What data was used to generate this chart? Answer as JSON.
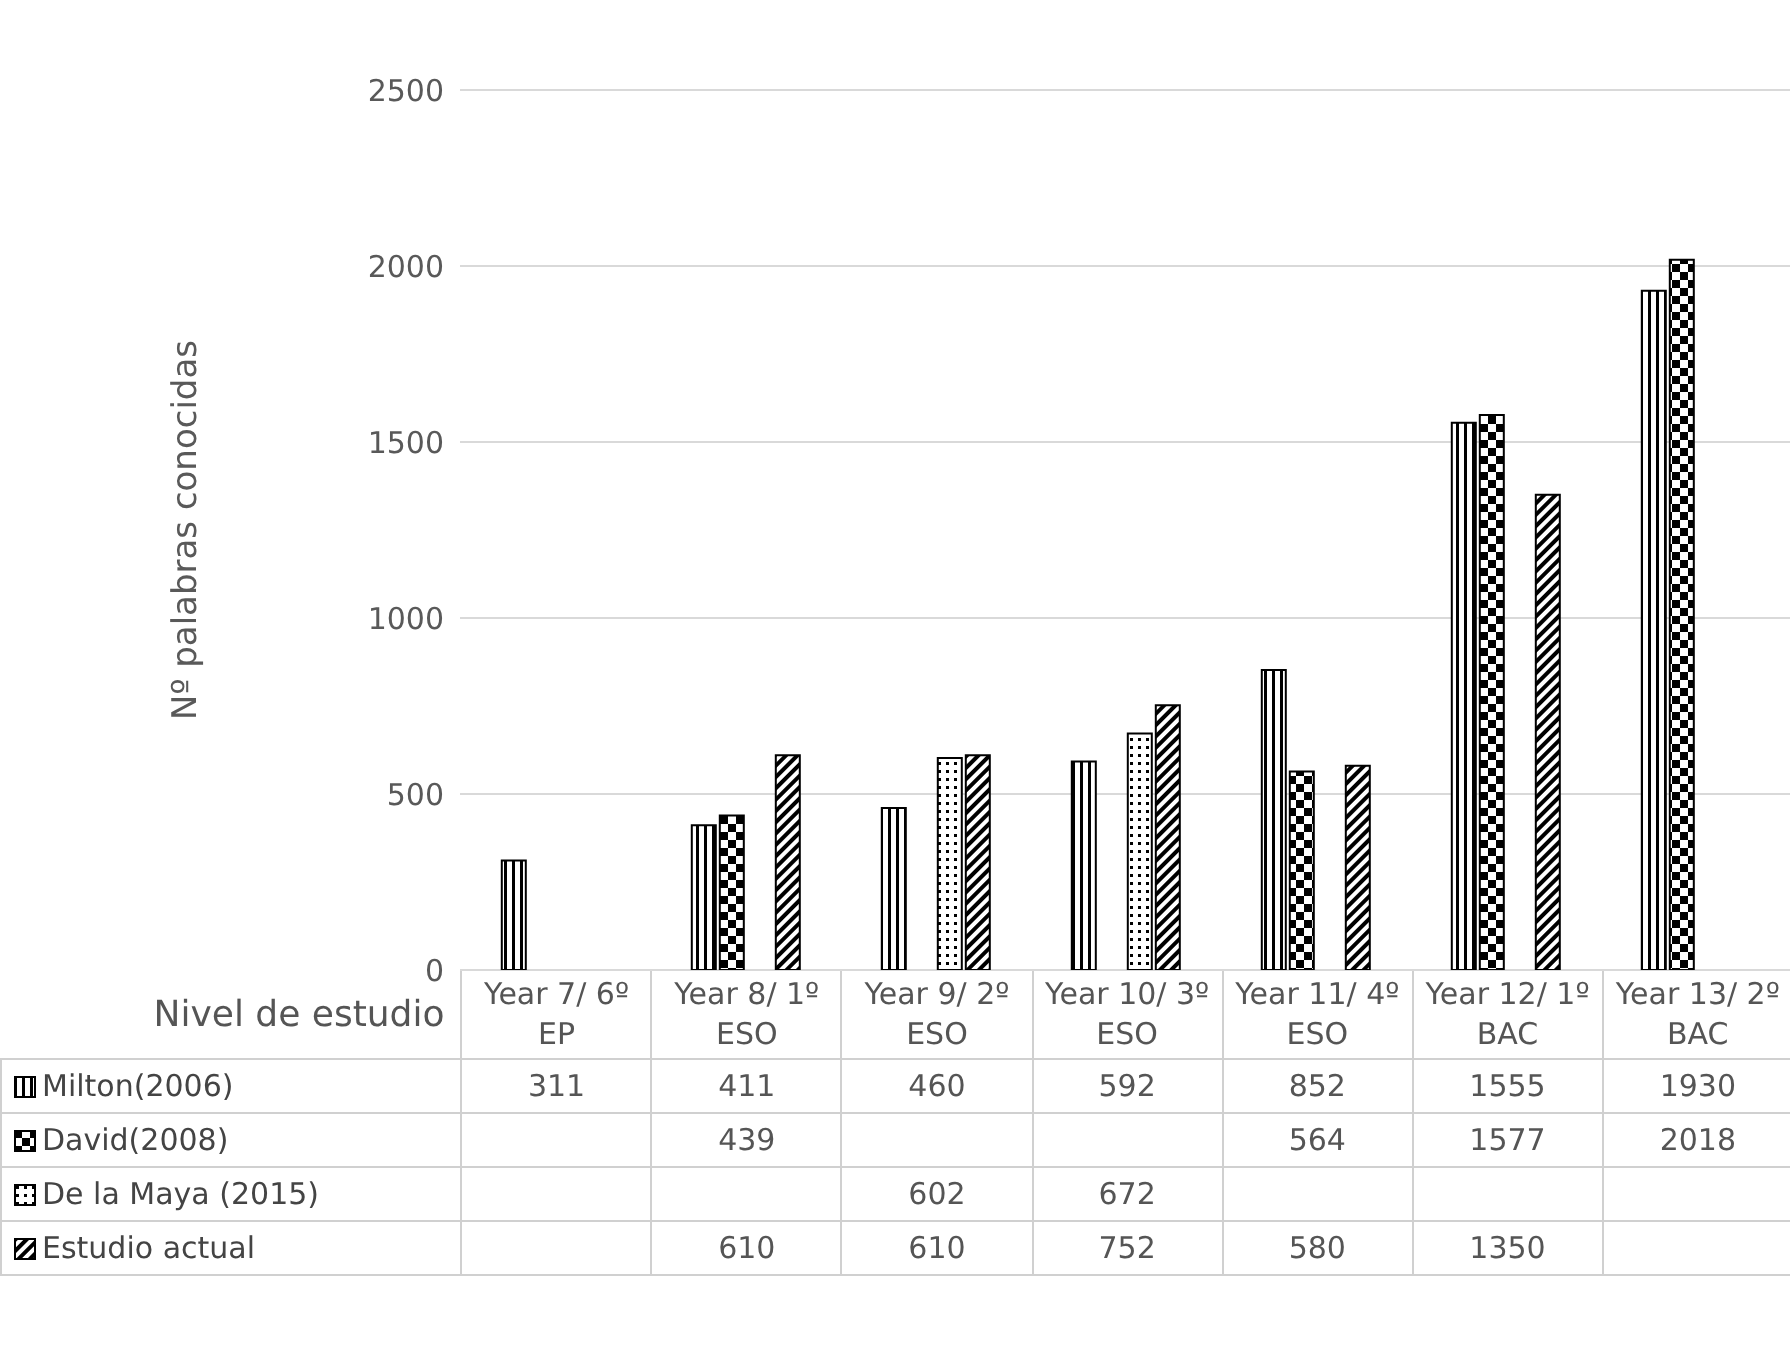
{
  "chart_data": {
    "type": "bar",
    "xlabel": "Nivel de estudio",
    "ylabel": "Nº palabras conocidas",
    "categories": [
      "Year 7/ 6º EP",
      "Year 8/ 1º ESO",
      "Year 9/ 2º ESO",
      "Year 10/ 3º ESO",
      "Year 11/ 4º ESO",
      "Year 12/ 1º BAC",
      "Year 13/ 2º BAC"
    ],
    "series": [
      {
        "name": "Milton(2006)",
        "color": "#000000",
        "values": [
          311,
          411,
          460,
          592,
          852,
          1555,
          1930
        ]
      },
      {
        "name": "David(2008)",
        "color": "#000000",
        "values": [
          null,
          439,
          null,
          null,
          564,
          1577,
          2018
        ]
      },
      {
        "name": "De la Maya (2015)",
        "color": "#000000",
        "values": [
          null,
          null,
          602,
          672,
          null,
          null,
          null
        ]
      },
      {
        "name": "Estudio actual",
        "color": "#000000",
        "values": [
          null,
          610,
          610,
          752,
          580,
          1350,
          null
        ]
      }
    ],
    "ylim": [
      0,
      2500
    ],
    "yticks": [
      0,
      500,
      1000,
      1500,
      2000,
      2500
    ],
    "grid": "y",
    "legend": "bottom",
    "data_labels": true
  }
}
